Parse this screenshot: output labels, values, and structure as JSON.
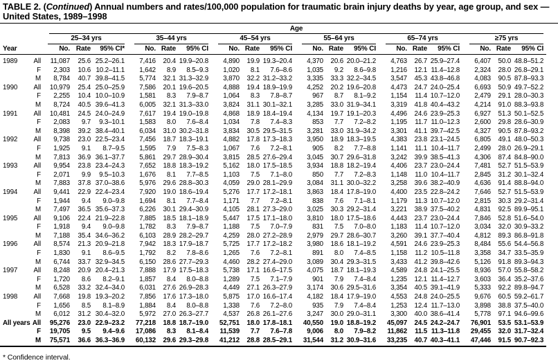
{
  "title": {
    "part1": "TABLE 2. (",
    "part2": "Continued",
    "part3": ") Annual numbers and rates/100,000 population for traumatic brain injury deaths by year, age group, and sex — United States, 1989–1998"
  },
  "table": {
    "span_header": "Age",
    "year_header": "Year",
    "age_groups": [
      "25–34 yrs",
      "35–44 yrs",
      "45–54 yrs",
      "55–64 yrs",
      "65–74 yrs",
      "≥75 yrs"
    ],
    "col_headers": {
      "no": "No.",
      "rate": "Rate",
      "ci": "95% CI",
      "ci_first": "95% CI*"
    },
    "rows": [
      {
        "year": "1989",
        "sex": "All",
        "bold": false,
        "cells": [
          "11,087",
          "25.6",
          "25.2–26.1",
          "7,416",
          "20.4",
          "19.9–20.8",
          "4,890",
          "19.9",
          "19.3–20.4",
          "4,370",
          "20.6",
          "20.0–21.2",
          "4,763",
          "26.7",
          "25.9–27.4",
          "6,407",
          "50.0",
          "48.8–51.2"
        ]
      },
      {
        "year": "",
        "sex": "F",
        "bold": false,
        "cells": [
          "2,303",
          "10.6",
          "10.2–11.1",
          "1,642",
          "8.9",
          "8.5–9.3",
          "1,020",
          "8.1",
          "7.6–8.6",
          "1,035",
          "9.2",
          "8.6–9.8",
          "1,216",
          "12.1",
          "11.4–12.8",
          "2,324",
          "28.0",
          "26.8–29.1"
        ]
      },
      {
        "year": "",
        "sex": "M",
        "bold": false,
        "cells": [
          "8,784",
          "40.7",
          "39.8–41.5",
          "5,774",
          "32.1",
          "31.3–32.9",
          "3,870",
          "32.2",
          "31.2–33.2",
          "3,335",
          "33.3",
          "32.2–34.5",
          "3,547",
          "45.3",
          "43.8–46.8",
          "4,083",
          "90.5",
          "87.8–93.3"
        ]
      },
      {
        "year": "1990",
        "sex": "All",
        "bold": false,
        "cells": [
          "10,979",
          "25.4",
          "25.0–25.9",
          "7,586",
          "20.1",
          "19.6–20.5",
          "4,888",
          "19.4",
          "18.9–19.9",
          "4,252",
          "20.2",
          "19.6–20.8",
          "4,473",
          "24.7",
          "24.0–25.4",
          "6,693",
          "50.9",
          "49.7–52.2"
        ]
      },
      {
        "year": "",
        "sex": "F",
        "bold": false,
        "cells": [
          "2,255",
          "10.4",
          "10.0–10.9",
          "1,581",
          "8.3",
          "7.9–8.7",
          "1,064",
          "8.3",
          "7.8–8.7",
          "967",
          "8.7",
          "8.1–9.2",
          "1,154",
          "11.4",
          "10.7–12.0",
          "2,479",
          "29.1",
          "28.0–30.3"
        ]
      },
      {
        "year": "",
        "sex": "M",
        "bold": false,
        "cells": [
          "8,724",
          "40.5",
          "39.6–41.3",
          "6,005",
          "32.1",
          "31.3–33.0",
          "3,824",
          "31.1",
          "30.1–32.1",
          "3,285",
          "33.0",
          "31.9–34.1",
          "3,319",
          "41.8",
          "40.4–43.2",
          "4,214",
          "91.0",
          "88.3–93.8"
        ]
      },
      {
        "year": "1991",
        "sex": "All",
        "bold": false,
        "cells": [
          "10,481",
          "24.5",
          "24.0–24.9",
          "7,617",
          "19.4",
          "19.0–19.8",
          "4,868",
          "18.9",
          "18.4–19.4",
          "4,134",
          "19.7",
          "19.1–20.3",
          "4,496",
          "24.6",
          "23.9–25.3",
          "6,927",
          "51.3",
          "50.1–52.5"
        ]
      },
      {
        "year": "",
        "sex": "F",
        "bold": false,
        "cells": [
          "2,083",
          "9.7",
          "9.3–10.1",
          "1,583",
          "8.0",
          "7.6–8.4",
          "1,034",
          "7.8",
          "7.4–8.3",
          "853",
          "7.7",
          "7.2–8.2",
          "1,195",
          "11.7",
          "11.0–12.3",
          "2,600",
          "29.8",
          "28.6–30.9"
        ]
      },
      {
        "year": "",
        "sex": "M",
        "bold": false,
        "cells": [
          "8,398",
          "39.2",
          "38.4–40.1",
          "6,034",
          "31.0",
          "30.2–31.8",
          "3,834",
          "30.5",
          "29.5–31.5",
          "3,281",
          "33.0",
          "31.9–34.2",
          "3,301",
          "41.1",
          "39.7–42.5",
          "4,327",
          "90.5",
          "87.8–93.2"
        ]
      },
      {
        "year": "1992",
        "sex": "All",
        "bold": false,
        "cells": [
          "9,738",
          "23.0",
          "22.5–23.4",
          "7,456",
          "18.7",
          "18.3–19.1",
          "4,882",
          "17.8",
          "17.3–18.3",
          "3,950",
          "18.9",
          "18.3–19.5",
          "4,383",
          "23.8",
          "23.1–24.5",
          "6,805",
          "49.1",
          "48.0–50.3"
        ]
      },
      {
        "year": "",
        "sex": "F",
        "bold": false,
        "cells": [
          "1,925",
          "9.1",
          "8.7–9.5",
          "1,595",
          "7.9",
          "7.5–8.3",
          "1,067",
          "7.6",
          "7.2–8.1",
          "905",
          "8.2",
          "7.7–8.8",
          "1,141",
          "11.1",
          "10.4–11.7",
          "2,499",
          "28.0",
          "26.9–29.1"
        ]
      },
      {
        "year": "",
        "sex": "M",
        "bold": false,
        "cells": [
          "7,813",
          "36.9",
          "36.1–37.7",
          "5,861",
          "29.7",
          "28.9–30.4",
          "3,815",
          "28.5",
          "27.6–29.4",
          "3,045",
          "30.7",
          "29.6–31.8",
          "3,242",
          "39.9",
          "38.5–41.3",
          "4,306",
          "87.4",
          "84.8–90.0"
        ]
      },
      {
        "year": "1993",
        "sex": "All",
        "bold": false,
        "cells": [
          "9,954",
          "23.8",
          "23.4–24.3",
          "7,652",
          "18.8",
          "18.3–19.2",
          "5,162",
          "18.0",
          "17.5–18.5",
          "3,934",
          "18.8",
          "18.2–19.4",
          "4,406",
          "23.7",
          "23.0–24.4",
          "7,481",
          "52.7",
          "51.5–53.9"
        ]
      },
      {
        "year": "",
        "sex": "F",
        "bold": false,
        "cells": [
          "2,071",
          "9.9",
          "9.5–10.3",
          "1,676",
          "8.1",
          "7.7–8.5",
          "1,103",
          "7.5",
          "7.1–8.0",
          "850",
          "7.7",
          "7.2–8.3",
          "1,148",
          "11.0",
          "10.4–11.7",
          "2,845",
          "31.2",
          "30.1–32.4"
        ]
      },
      {
        "year": "",
        "sex": "M",
        "bold": false,
        "cells": [
          "7,883",
          "37.8",
          "37.0–38.6",
          "5,976",
          "29.6",
          "28.8–30.3",
          "4,059",
          "29.0",
          "28.1–29.9",
          "3,084",
          "31.1",
          "30.0–32.2",
          "3,258",
          "39.6",
          "38.2–40.9",
          "4,636",
          "91.4",
          "88.8–94.0"
        ]
      },
      {
        "year": "1994",
        "sex": "All",
        "bold": false,
        "cells": [
          "9,441",
          "22.9",
          "22.4–23.4",
          "7,920",
          "19.0",
          "18.6–19.4",
          "5,276",
          "17.7",
          "17.2–18.1",
          "3,863",
          "18.4",
          "17.8–19.0",
          "4,400",
          "23.5",
          "22.8–24.2",
          "7,646",
          "52.7",
          "51.5–53.9"
        ]
      },
      {
        "year": "",
        "sex": "F",
        "bold": false,
        "cells": [
          "1,944",
          "9.4",
          "9.0–9.8",
          "1,694",
          "8.1",
          "7.7–8.4",
          "1,171",
          "7.7",
          "7.2–8.1",
          "838",
          "7.6",
          "7.1–8.1",
          "1,179",
          "11.3",
          "10.7–12.0",
          "2,815",
          "30.3",
          "29.2–31.4"
        ]
      },
      {
        "year": "",
        "sex": "M",
        "bold": false,
        "cells": [
          "7,497",
          "36.5",
          "35.6–37.3",
          "6,226",
          "30.1",
          "29.4–30.9",
          "4,105",
          "28.1",
          "27.3–29.0",
          "3,025",
          "30.3",
          "29.2–31.4",
          "3,221",
          "38.9",
          "37.5–40.2",
          "4,831",
          "92.5",
          "89.9–95.1"
        ]
      },
      {
        "year": "1995",
        "sex": "All",
        "bold": false,
        "cells": [
          "9,106",
          "22.4",
          "21.9–22.8",
          "7,885",
          "18.5",
          "18.1–18.9",
          "5,447",
          "17.5",
          "17.1–18.0",
          "3,810",
          "18.0",
          "17.5–18.6",
          "4,443",
          "23.7",
          "23.0–24.4",
          "7,846",
          "52.8",
          "51.6–54.0"
        ]
      },
      {
        "year": "",
        "sex": "F",
        "bold": false,
        "cells": [
          "1,918",
          "9.4",
          "9.0–9.8",
          "1,782",
          "8.3",
          "7.9–8.7",
          "1,188",
          "7.5",
          "7.0–7.9",
          "831",
          "7.5",
          "7.0–8.0",
          "1,183",
          "11.4",
          "10.7–12.0",
          "3,034",
          "32.0",
          "30.9–33.2"
        ]
      },
      {
        "year": "",
        "sex": "M",
        "bold": false,
        "cells": [
          "7,188",
          "35.4",
          "34.6–36.2",
          "6,103",
          "28.9",
          "28.2–29.7",
          "4,259",
          "28.0",
          "27.2–28.9",
          "2,979",
          "29.7",
          "28.6–30.7",
          "3,260",
          "39.1",
          "37.7–40.4",
          "4,812",
          "89.3",
          "86.8–91.8"
        ]
      },
      {
        "year": "1996",
        "sex": "All",
        "bold": false,
        "cells": [
          "8,574",
          "21.3",
          "20.9–21.8",
          "7,942",
          "18.3",
          "17.9–18.7",
          "5,725",
          "17.7",
          "17.2–18.2",
          "3,980",
          "18.6",
          "18.1–19.2",
          "4,591",
          "24.6",
          "23.9–25.3",
          "8,484",
          "55.6",
          "54.4–56.8"
        ]
      },
      {
        "year": "",
        "sex": "F",
        "bold": false,
        "cells": [
          "1,830",
          "9.1",
          "8.6–9.5",
          "1,792",
          "8.2",
          "7.8–8.6",
          "1,265",
          "7.6",
          "7.2–8.1",
          "891",
          "8.0",
          "7.4–8.5",
          "1,158",
          "11.2",
          "10.5–11.8",
          "3,358",
          "34.7",
          "33.5–35.9"
        ]
      },
      {
        "year": "",
        "sex": "M",
        "bold": false,
        "cells": [
          "6,744",
          "33.7",
          "32.9–34.5",
          "6,150",
          "28.6",
          "27.7–29.3",
          "4,460",
          "28.2",
          "27.4–29.0",
          "3,089",
          "30.4",
          "29.3–31.5",
          "3,433",
          "41.2",
          "39.8–42.6",
          "5,126",
          "91.8",
          "89.3–94.3"
        ]
      },
      {
        "year": "1997",
        "sex": "All",
        "bold": false,
        "cells": [
          "8,248",
          "20.9",
          "20.4–21.3",
          "7,888",
          "17.9",
          "17.5–18.3",
          "5,738",
          "17.1",
          "16.6–17.5",
          "4,075",
          "18.7",
          "18.1–19.3",
          "4,589",
          "24.8",
          "24.1–25.5",
          "8,936",
          "57.0",
          "55.8–58.2"
        ]
      },
      {
        "year": "",
        "sex": "F",
        "bold": false,
        "cells": [
          "1,720",
          "8.6",
          "8.2–9.1",
          "1,857",
          "8.4",
          "8.0–8.8",
          "1,289",
          "7.5",
          "7.1–7.9",
          "901",
          "7.9",
          "7.4–8.4",
          "1,235",
          "12.1",
          "11.4–12.7",
          "3,603",
          "36.4",
          "35.2–37.6"
        ]
      },
      {
        "year": "",
        "sex": "M",
        "bold": false,
        "cells": [
          "6,528",
          "33.2",
          "32.4–34.0",
          "6,031",
          "27.6",
          "26.9–28.3",
          "4,449",
          "27.1",
          "26.3–27.9",
          "3,174",
          "30.6",
          "29.5–31.6",
          "3,354",
          "40.5",
          "39.1–41.9",
          "5,333",
          "92.2",
          "89.8–94.7"
        ]
      },
      {
        "year": "1998",
        "sex": "All",
        "bold": false,
        "cells": [
          "7,668",
          "19.8",
          "19.3–20.2",
          "7,856",
          "17.6",
          "17.3–18.0",
          "5,875",
          "17.0",
          "16.6–17.4",
          "4,182",
          "18.4",
          "17.9–19.0",
          "4,553",
          "24.8",
          "24.0–25.5",
          "9,676",
          "60.5",
          "59.2–61.7"
        ]
      },
      {
        "year": "",
        "sex": "F",
        "bold": false,
        "cells": [
          "1,656",
          "8.5",
          "8.1–8.9",
          "1,884",
          "8.4",
          "8.0–8.8",
          "1,338",
          "7.6",
          "7.2–8.0",
          "935",
          "7.9",
          "7.4–8.4",
          "1,253",
          "12.4",
          "11.7–13.0",
          "3,898",
          "38.8",
          "37.5–40.0"
        ]
      },
      {
        "year": "",
        "sex": "M",
        "bold": false,
        "cells": [
          "6,012",
          "31.2",
          "30.4–32.0",
          "5,972",
          "27.0",
          "26.3–27.7",
          "4,537",
          "26.8",
          "26.1–27.6",
          "3,247",
          "30.0",
          "29.0–31.1",
          "3,300",
          "40.0",
          "38.6–41.4",
          "5,778",
          "97.1",
          "94.6–99.6"
        ]
      },
      {
        "year": "All years",
        "sex": "All",
        "bold": true,
        "cells": [
          "95,276",
          "23.0",
          "22.9–23.2",
          "77,218",
          "18.8",
          "18.7–19.0",
          "52,751",
          "18.0",
          "17.8–18.1",
          "40,550",
          "19.0",
          "18.8–19.2",
          "45,097",
          "24.5",
          "24.2–24.7",
          "76,901",
          "53.5",
          "53.1–53.9"
        ]
      },
      {
        "year": "",
        "sex": "F",
        "bold": true,
        "cells": [
          "19,705",
          "9.5",
          "9.4–9.6",
          "17,086",
          "8.3",
          "8.1–8.4",
          "11,539",
          "7.7",
          "7.6–7.8",
          "9,006",
          "8.0",
          "7.9–8.2",
          "11,862",
          "11.5",
          "11.3–11.8",
          "29,455",
          "32.0",
          "31.7–32.4"
        ]
      },
      {
        "year": "",
        "sex": "M",
        "bold": true,
        "cells": [
          "75,571",
          "36.6",
          "36.3–36.9",
          "60,132",
          "29.6",
          "29.3–29.8",
          "41,212",
          "28.8",
          "28.5–29.1",
          "31,544",
          "31.2",
          "30.9–31.6",
          "33,235",
          "40.7",
          "40.3–41.1",
          "47,446",
          "91.5",
          "90.7–92.3"
        ]
      }
    ],
    "footnote": "* Confidence interval."
  }
}
